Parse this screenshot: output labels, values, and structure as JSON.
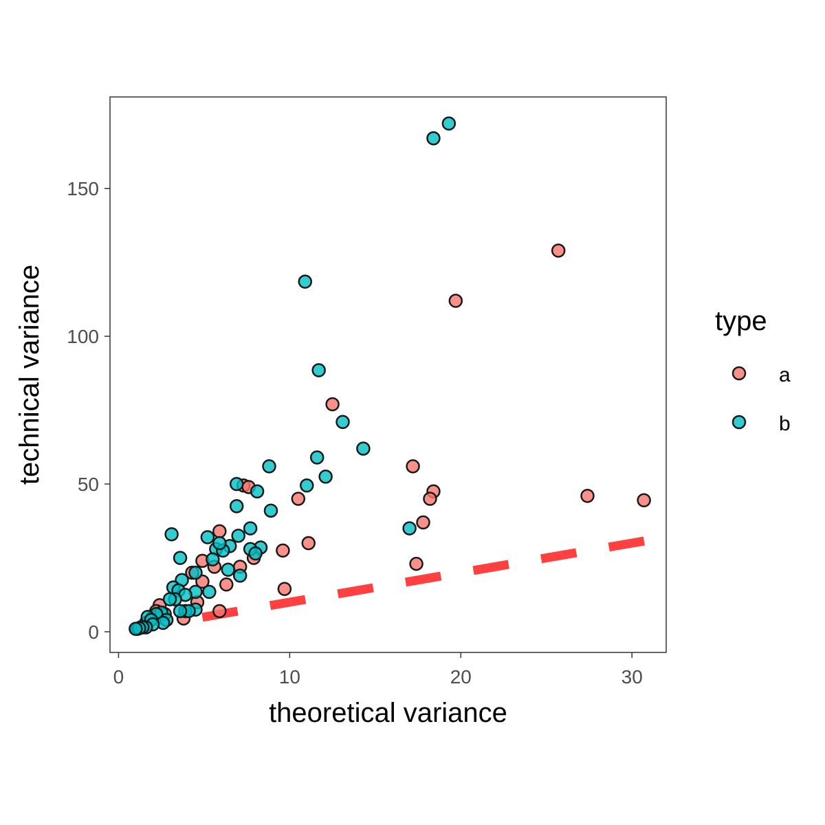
{
  "chart_data": {
    "type": "scatter",
    "xlabel": "theoretical variance",
    "ylabel": "technical variance",
    "xlim": [
      -0.5,
      32
    ],
    "ylim": [
      -7,
      181
    ],
    "x_ticks": [
      0,
      10,
      20,
      30
    ],
    "y_ticks": [
      0,
      50,
      100,
      150
    ],
    "grid": false,
    "legend": {
      "title": "type",
      "position": "right"
    },
    "reference_line": {
      "style": "dashed",
      "color": "#ff4040",
      "slope": 1,
      "intercept": 0,
      "x_range": [
        4.9,
        32
      ]
    },
    "series": [
      {
        "name": "a",
        "color": "#f8766d",
        "points": [
          [
            25.7,
            129
          ],
          [
            19.7,
            112
          ],
          [
            12.5,
            77
          ],
          [
            17.2,
            56
          ],
          [
            18.4,
            47.5
          ],
          [
            18.2,
            45
          ],
          [
            17.8,
            37
          ],
          [
            17.4,
            23
          ],
          [
            27.4,
            46
          ],
          [
            30.7,
            44.5
          ],
          [
            10.5,
            45
          ],
          [
            11.1,
            30
          ],
          [
            9.6,
            27.5
          ],
          [
            9.7,
            14.5
          ],
          [
            7.3,
            49.5
          ],
          [
            7.6,
            49
          ],
          [
            7.9,
            25
          ],
          [
            7.1,
            22
          ],
          [
            6.3,
            16
          ],
          [
            5.9,
            34
          ],
          [
            5.6,
            22
          ],
          [
            5.9,
            7
          ],
          [
            4.9,
            24
          ],
          [
            4.9,
            17
          ],
          [
            4.3,
            20
          ],
          [
            4.6,
            10
          ],
          [
            3.9,
            7
          ],
          [
            3.8,
            4.5
          ],
          [
            2.4,
            9
          ],
          [
            2.2,
            7
          ],
          [
            2.0,
            5
          ],
          [
            1.6,
            3
          ],
          [
            1.3,
            1.5
          ],
          [
            1.1,
            1
          ]
        ]
      },
      {
        "name": "b",
        "color": "#00bfc4",
        "points": [
          [
            19.3,
            172
          ],
          [
            18.4,
            167
          ],
          [
            10.9,
            118.5
          ],
          [
            11.7,
            88.5
          ],
          [
            13.1,
            71
          ],
          [
            14.3,
            62
          ],
          [
            11.6,
            59
          ],
          [
            12.1,
            52.5
          ],
          [
            11.0,
            49.5
          ],
          [
            8.8,
            56
          ],
          [
            6.9,
            50
          ],
          [
            8.1,
            47.5
          ],
          [
            6.9,
            42.5
          ],
          [
            8.9,
            41
          ],
          [
            17.0,
            35
          ],
          [
            7.7,
            35
          ],
          [
            7.0,
            32.5
          ],
          [
            8.3,
            28.5
          ],
          [
            7.7,
            28
          ],
          [
            8.0,
            26.5
          ],
          [
            7.1,
            19
          ],
          [
            6.5,
            29
          ],
          [
            6.4,
            21
          ],
          [
            5.7,
            28
          ],
          [
            6.1,
            27.5
          ],
          [
            5.9,
            30
          ],
          [
            5.5,
            24.5
          ],
          [
            5.2,
            32
          ],
          [
            3.1,
            33
          ],
          [
            3.6,
            25
          ],
          [
            4.5,
            20
          ],
          [
            3.7,
            17.5
          ],
          [
            3.2,
            15
          ],
          [
            3.5,
            14
          ],
          [
            5.3,
            13.5
          ],
          [
            4.5,
            13.5
          ],
          [
            3.9,
            12.5
          ],
          [
            3.3,
            11
          ],
          [
            3.0,
            11
          ],
          [
            4.5,
            7.5
          ],
          [
            3.9,
            7
          ],
          [
            4.1,
            7
          ],
          [
            3.6,
            7
          ],
          [
            2.7,
            6
          ],
          [
            2.5,
            6.5
          ],
          [
            2.2,
            6
          ],
          [
            2.8,
            4
          ],
          [
            2.6,
            3
          ],
          [
            1.7,
            5
          ],
          [
            1.9,
            4
          ],
          [
            2.0,
            2.5
          ],
          [
            1.6,
            1.5
          ],
          [
            1.4,
            1.5
          ],
          [
            1.2,
            1.2
          ],
          [
            1.0,
            1
          ]
        ]
      }
    ]
  }
}
